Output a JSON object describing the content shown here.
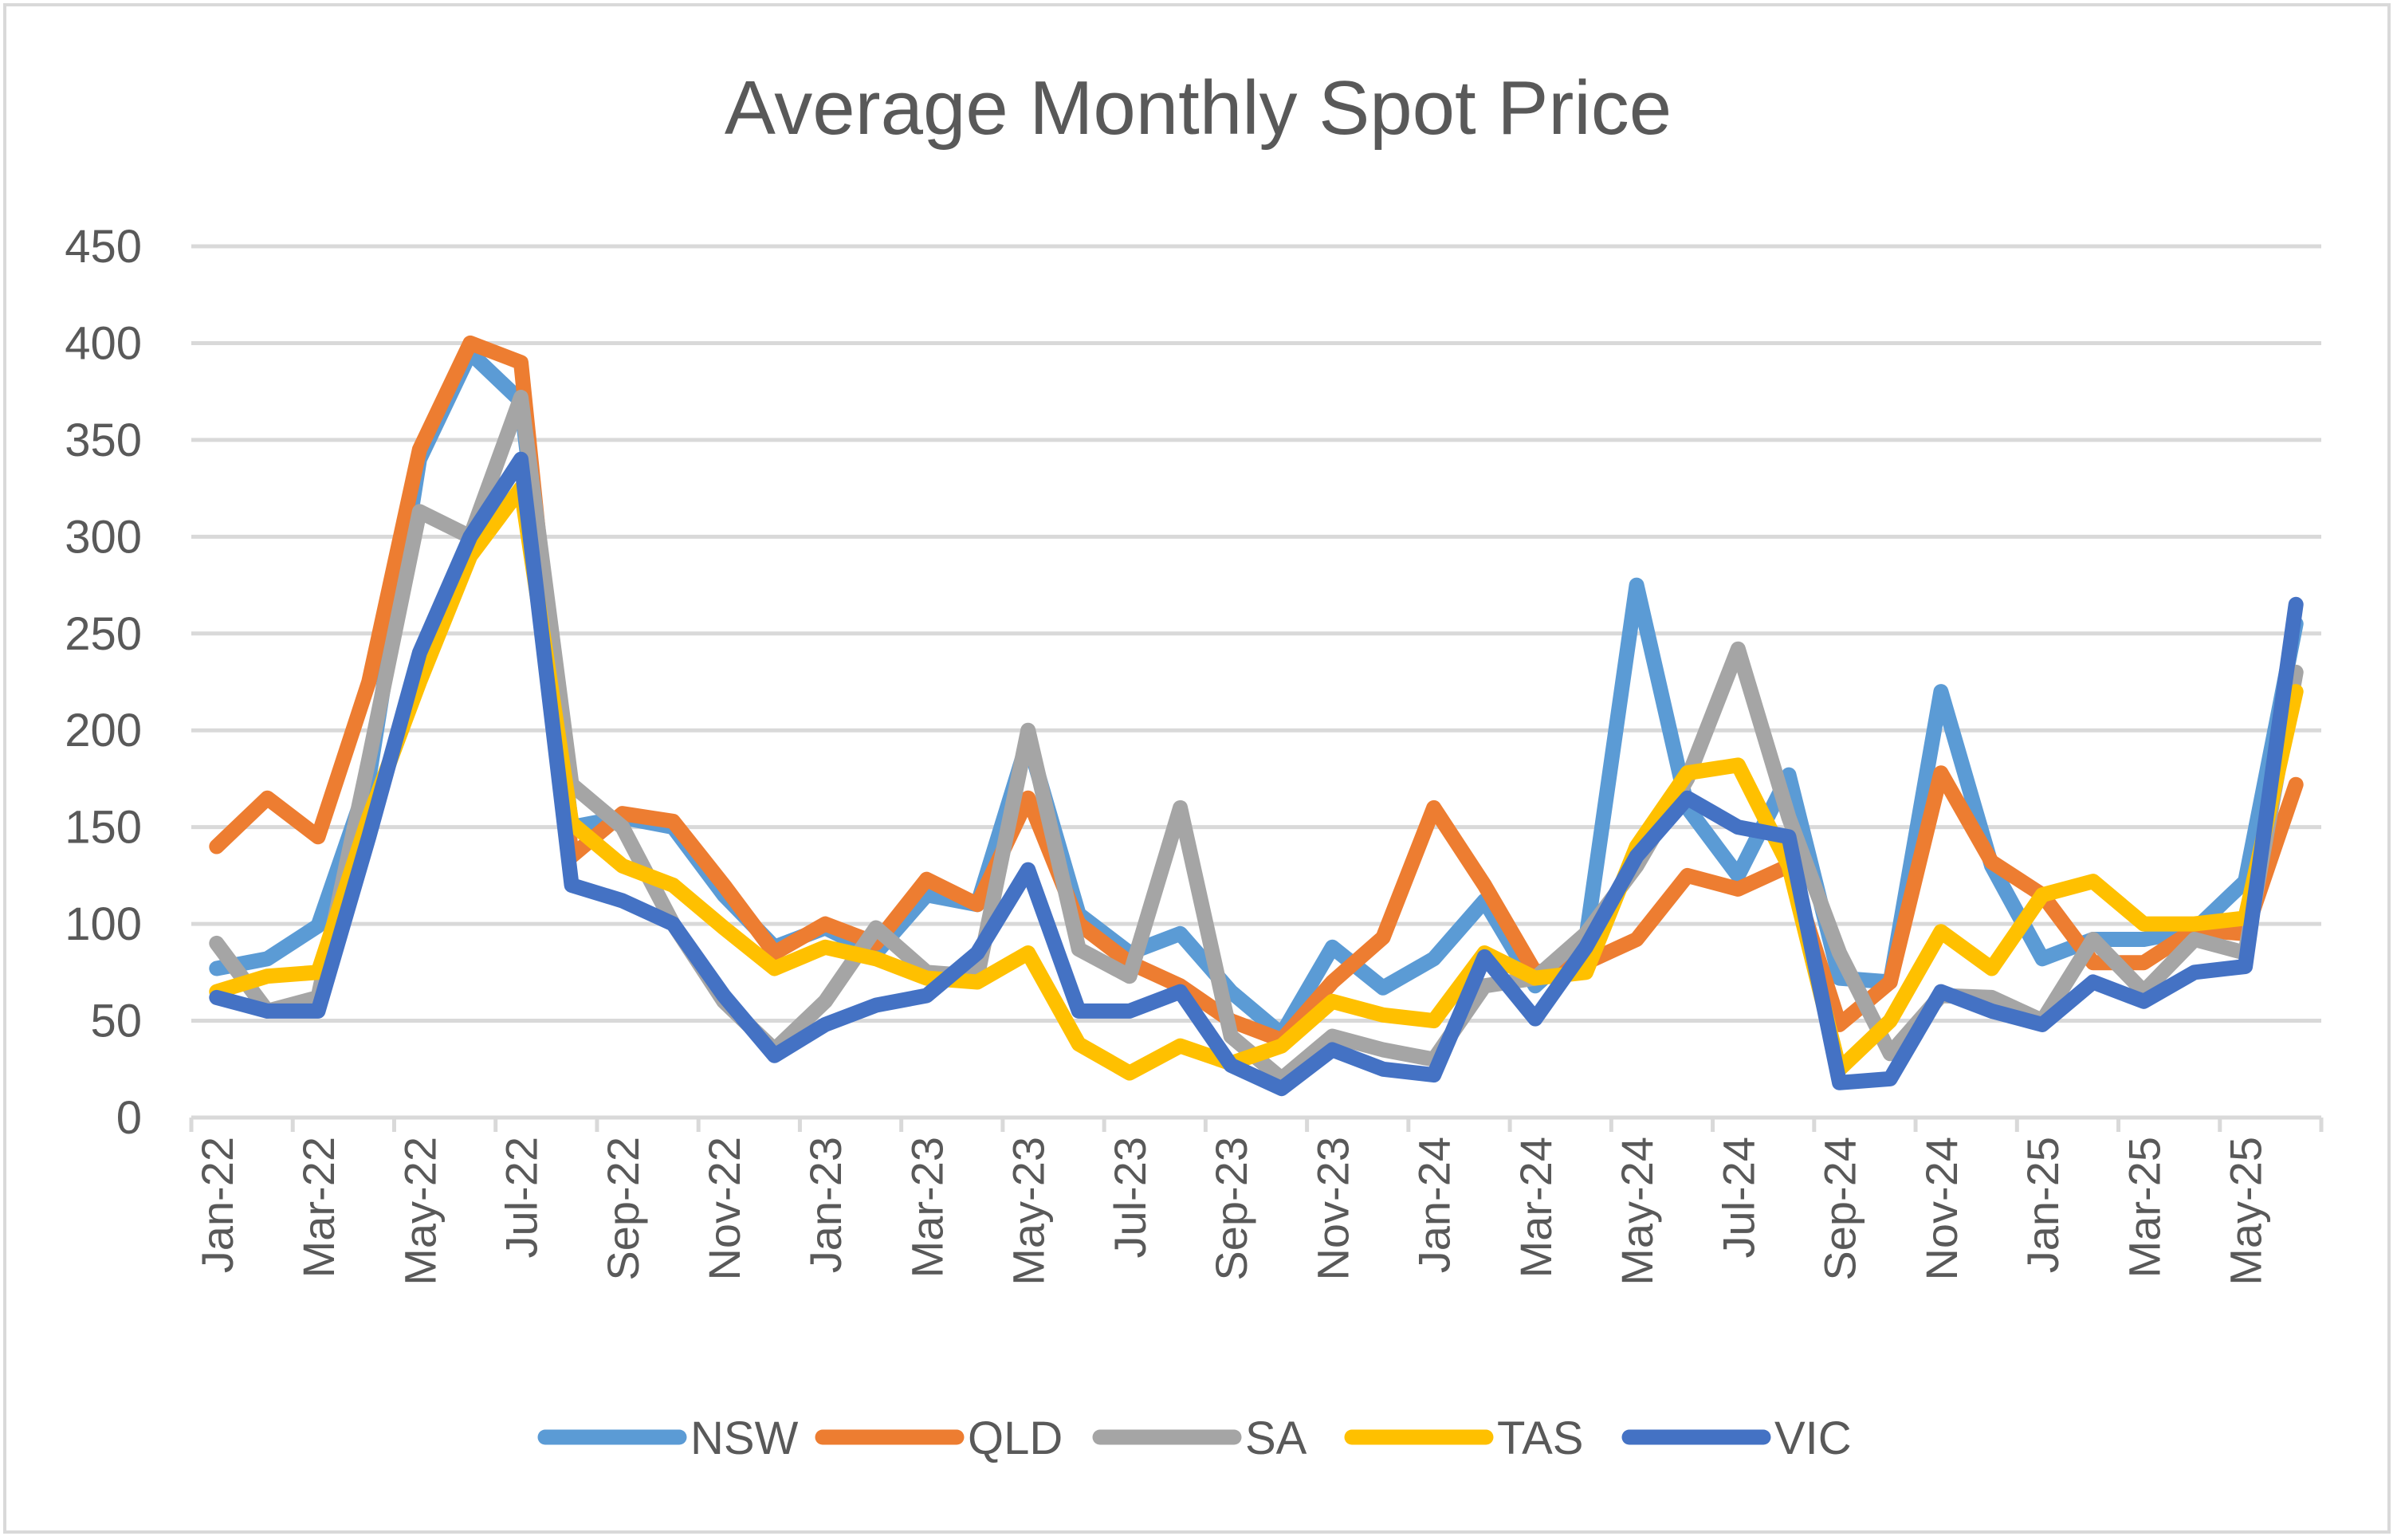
{
  "chart_data": {
    "type": "line",
    "title": "Average Monthly Spot Price",
    "xlabel": "",
    "ylabel": "",
    "ylim": [
      0,
      450
    ],
    "yticks": [
      "0",
      "50",
      "100",
      "150",
      "200",
      "250",
      "300",
      "350",
      "400",
      "450"
    ],
    "grid": true,
    "legend": "bottom",
    "x": [
      "Jan-22",
      "Feb-22",
      "Mar-22",
      "Apr-22",
      "May-22",
      "Jun-22",
      "Jul-22",
      "Aug-22",
      "Sep-22",
      "Oct-22",
      "Nov-22",
      "Dec-22",
      "Jan-23",
      "Feb-23",
      "Mar-23",
      "Apr-23",
      "May-23",
      "Jun-23",
      "Jul-23",
      "Aug-23",
      "Sep-23",
      "Oct-23",
      "Nov-23",
      "Dec-23",
      "Jan-24",
      "Feb-24",
      "Mar-24",
      "Apr-24",
      "May-24",
      "Jun-24",
      "Jul-24",
      "Aug-24",
      "Sep-24",
      "Oct-24",
      "Nov-24",
      "Dec-24",
      "Jan-25",
      "Feb-25",
      "Mar-25",
      "Apr-25",
      "May-25",
      "Jun-25"
    ],
    "x_tick_labels": [
      "Jan-22",
      "Mar-22",
      "May-22",
      "Jul-22",
      "Sep-22",
      "Nov-22",
      "Jan-23",
      "Mar-23",
      "May-23",
      "Jul-23",
      "Sep-23",
      "Nov-23",
      "Jan-24",
      "Mar-24",
      "May-24",
      "Jul-24",
      "Sep-24",
      "Nov-24",
      "Jan-25",
      "Mar-25",
      "May-25"
    ],
    "series": [
      {
        "name": "NSW",
        "color": "#5b9bd5",
        "values": [
          77,
          82,
          99,
          175,
          340,
          395,
          370,
          150,
          155,
          150,
          115,
          88,
          98,
          85,
          115,
          110,
          195,
          105,
          85,
          95,
          65,
          43,
          88,
          67,
          82,
          112,
          68,
          92,
          275,
          160,
          125,
          177,
          72,
          70,
          220,
          130,
          82,
          92,
          92,
          97,
          122,
          255
        ]
      },
      {
        "name": "QLD",
        "color": "#ed7d31",
        "values": [
          140,
          165,
          145,
          225,
          345,
          400,
          390,
          135,
          157,
          153,
          120,
          85,
          100,
          90,
          123,
          110,
          165,
          100,
          80,
          68,
          50,
          40,
          70,
          93,
          160,
          120,
          75,
          80,
          92,
          125,
          118,
          130,
          48,
          70,
          178,
          132,
          115,
          80,
          80,
          97,
          95,
          172
        ]
      },
      {
        "name": "SA",
        "color": "#a5a5a5",
        "values": [
          90,
          55,
          62,
          185,
          313,
          300,
          372,
          172,
          150,
          100,
          60,
          35,
          60,
          98,
          75,
          73,
          200,
          87,
          73,
          160,
          42,
          20,
          42,
          35,
          30,
          68,
          72,
          95,
          130,
          175,
          242,
          155,
          85,
          33,
          63,
          62,
          50,
          92,
          65,
          92,
          85,
          230
        ]
      },
      {
        "name": "TAS",
        "color": "#ffc000",
        "values": [
          65,
          73,
          75,
          155,
          225,
          290,
          325,
          152,
          130,
          120,
          98,
          77,
          88,
          82,
          72,
          70,
          85,
          38,
          23,
          37,
          28,
          37,
          60,
          53,
          50,
          85,
          72,
          75,
          140,
          178,
          182,
          130,
          25,
          50,
          96,
          77,
          115,
          122,
          100,
          100,
          103,
          220
        ]
      },
      {
        "name": "VIC",
        "color": "#4472c4",
        "values": [
          62,
          55,
          55,
          145,
          240,
          300,
          340,
          120,
          112,
          100,
          63,
          32,
          48,
          58,
          63,
          85,
          128,
          55,
          55,
          65,
          27,
          15,
          35,
          25,
          22,
          83,
          51,
          88,
          135,
          165,
          150,
          145,
          18,
          20,
          65,
          55,
          48,
          70,
          60,
          75,
          78,
          265
        ]
      }
    ]
  }
}
